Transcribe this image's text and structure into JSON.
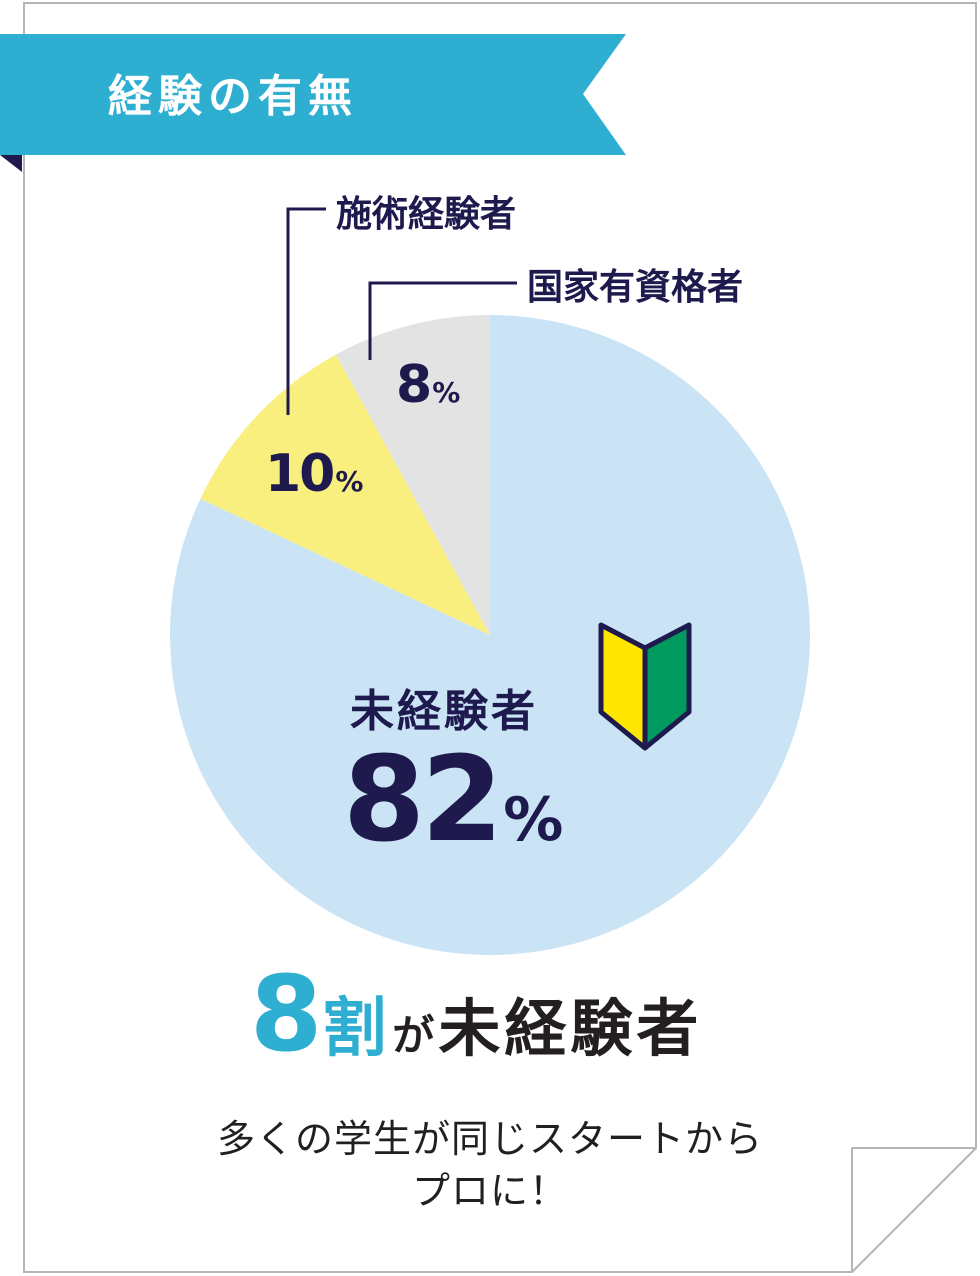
{
  "header": {
    "title": "経験の有無"
  },
  "chart_data": {
    "type": "pie",
    "slices": [
      {
        "label": "未経験者",
        "value": 82,
        "value_label": "82",
        "unit": "%",
        "color": "#cae3f5"
      },
      {
        "label": "施術経験者",
        "value": 10,
        "value_label": "10",
        "unit": "%",
        "color": "#f9ef7e"
      },
      {
        "label": "国家有資格者",
        "value": 8,
        "value_label": "8",
        "unit": "%",
        "color": "#e3e3e3"
      }
    ]
  },
  "headline": {
    "number": "8",
    "unit": "割",
    "particle": "が",
    "text": "未経験者"
  },
  "subtext": {
    "line1": "多くの学生が同じスタートから",
    "line2": "プロに！"
  },
  "colors": {
    "banner": "#2eafd2",
    "banner_fold": "#1f1a4d",
    "ink": "#1f1a4d",
    "accent": "#2eafd2",
    "wakaba_yellow": "#ffe600",
    "wakaba_green": "#009a5e"
  },
  "icons": {
    "beginner_mark": "wakaba-beginner-mark-icon"
  }
}
